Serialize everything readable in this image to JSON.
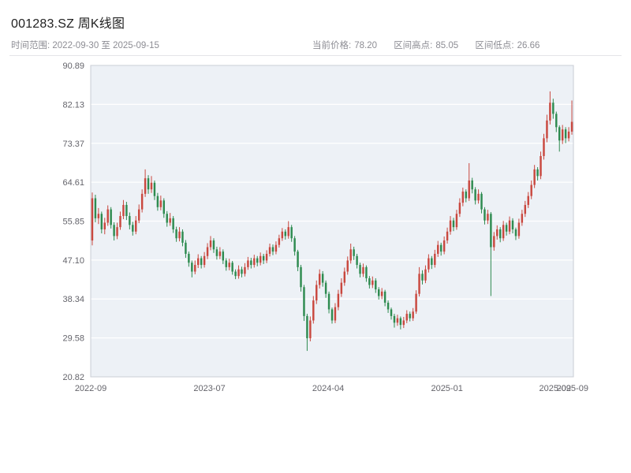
{
  "header": {
    "title": "001283.SZ 周K线图",
    "time_range": "时间范围: 2022-09-30 至 2025-09-15",
    "stats": [
      {
        "label": "当前价格:",
        "value": "78.20"
      },
      {
        "label": "区间高点:",
        "value": "85.05"
      },
      {
        "label": "区间低点:",
        "value": "26.66"
      }
    ]
  },
  "chart_data": {
    "type": "candlestick",
    "title": "001283.SZ 周K线图",
    "symbol": "001283.SZ",
    "period": "weekly",
    "start_date": "2022-09-30",
    "end_date": "2025-09-15",
    "current_price": 78.2,
    "range_high": 85.05,
    "range_low": 26.66,
    "ylim": [
      20.82,
      90.89
    ],
    "y_ticks": [
      "90.89",
      "82.13",
      "73.37",
      "64.61",
      "55.85",
      "47.10",
      "38.34",
      "29.58",
      "20.82"
    ],
    "x_ticks": [
      {
        "label": "2022-09",
        "pos": 0.0
      },
      {
        "label": "2023-07",
        "pos": 0.246
      },
      {
        "label": "2024-04",
        "pos": 0.492
      },
      {
        "label": "2025-01",
        "pos": 0.738
      },
      {
        "label": "2025-09",
        "pos": 0.962
      },
      {
        "label": "2025-09",
        "pos": 0.998
      }
    ],
    "grid": true,
    "legend": "none",
    "up_color": "#c9483f",
    "down_color": "#2e8b50",
    "plot_bg": "#edf1f6",
    "border_color": "#c8ccd4",
    "candles": [
      [
        51.5,
        62.3,
        50.4,
        61.0
      ],
      [
        61.0,
        61.8,
        55.6,
        56.5
      ],
      [
        56.5,
        58.8,
        55.2,
        57.5
      ],
      [
        57.5,
        58.0,
        53.1,
        54.0
      ],
      [
        54.0,
        56.6,
        52.9,
        55.5
      ],
      [
        55.5,
        59.4,
        54.8,
        58.5
      ],
      [
        58.5,
        59.0,
        54.2,
        55.0
      ],
      [
        55.0,
        55.6,
        51.5,
        52.5
      ],
      [
        52.5,
        55.5,
        51.8,
        54.5
      ],
      [
        54.5,
        58.0,
        53.9,
        57.0
      ],
      [
        57.0,
        60.6,
        56.3,
        59.5
      ],
      [
        59.5,
        60.2,
        56.1,
        57.0
      ],
      [
        57.0,
        57.8,
        54.0,
        55.0
      ],
      [
        55.0,
        55.7,
        52.6,
        53.5
      ],
      [
        53.5,
        57.0,
        52.9,
        56.0
      ],
      [
        56.0,
        59.6,
        55.4,
        58.5
      ],
      [
        58.5,
        63.0,
        57.8,
        62.0
      ],
      [
        62.0,
        67.5,
        61.3,
        65.5
      ],
      [
        65.5,
        66.2,
        62.0,
        63.0
      ],
      [
        63.0,
        66.0,
        62.2,
        64.5
      ],
      [
        64.5,
        65.0,
        60.6,
        61.5
      ],
      [
        61.5,
        62.2,
        58.2,
        59.0
      ],
      [
        59.0,
        61.6,
        58.3,
        60.5
      ],
      [
        60.5,
        61.0,
        56.6,
        57.5
      ],
      [
        57.5,
        58.1,
        54.6,
        55.5
      ],
      [
        55.5,
        57.7,
        54.8,
        56.5
      ],
      [
        56.5,
        57.0,
        53.2,
        54.0
      ],
      [
        54.0,
        54.6,
        51.2,
        52.0
      ],
      [
        52.0,
        54.5,
        51.3,
        53.5
      ],
      [
        53.5,
        54.0,
        50.2,
        51.0
      ],
      [
        51.0,
        51.6,
        47.6,
        48.5
      ],
      [
        48.5,
        49.0,
        45.6,
        46.5
      ],
      [
        46.5,
        47.0,
        43.2,
        44.5
      ],
      [
        44.5,
        47.0,
        43.9,
        46.0
      ],
      [
        46.0,
        48.4,
        45.3,
        47.5
      ],
      [
        47.5,
        48.0,
        45.2,
        46.0
      ],
      [
        46.0,
        48.9,
        45.4,
        48.0
      ],
      [
        48.0,
        50.9,
        47.3,
        50.0
      ],
      [
        50.0,
        52.5,
        49.3,
        51.5
      ],
      [
        51.5,
        52.0,
        48.7,
        49.5
      ],
      [
        49.5,
        50.1,
        47.2,
        48.0
      ],
      [
        48.0,
        50.0,
        47.3,
        49.0
      ],
      [
        49.0,
        49.5,
        46.2,
        47.0
      ],
      [
        47.0,
        47.5,
        44.7,
        45.5
      ],
      [
        45.5,
        47.4,
        44.8,
        46.5
      ],
      [
        46.5,
        46.9,
        43.8,
        44.5
      ],
      [
        44.5,
        45.0,
        42.8,
        43.5
      ],
      [
        43.5,
        45.9,
        42.9,
        45.0
      ],
      [
        45.0,
        45.6,
        43.2,
        44.0
      ],
      [
        44.0,
        46.4,
        43.4,
        45.5
      ],
      [
        45.5,
        47.8,
        44.9,
        47.0
      ],
      [
        47.0,
        47.6,
        45.2,
        46.0
      ],
      [
        46.0,
        48.3,
        45.4,
        47.5
      ],
      [
        47.5,
        48.0,
        45.7,
        46.5
      ],
      [
        46.5,
        48.8,
        45.9,
        48.0
      ],
      [
        48.0,
        48.5,
        46.2,
        47.0
      ],
      [
        47.0,
        49.3,
        46.4,
        48.5
      ],
      [
        48.5,
        50.8,
        47.9,
        50.0
      ],
      [
        50.0,
        50.6,
        48.2,
        49.0
      ],
      [
        49.0,
        51.3,
        48.4,
        50.5
      ],
      [
        50.5,
        52.8,
        49.9,
        52.0
      ],
      [
        52.0,
        54.3,
        51.4,
        53.5
      ],
      [
        53.5,
        54.0,
        51.7,
        52.5
      ],
      [
        52.5,
        55.85,
        51.9,
        54.5
      ],
      [
        54.5,
        55.0,
        51.2,
        52.0
      ],
      [
        52.0,
        52.5,
        48.1,
        49.0
      ],
      [
        49.0,
        49.4,
        44.6,
        45.5
      ],
      [
        45.5,
        46.0,
        40.0,
        41.0
      ],
      [
        41.0,
        41.5,
        33.4,
        34.5
      ],
      [
        34.5,
        35.0,
        26.66,
        29.5
      ],
      [
        29.5,
        34.4,
        28.8,
        33.5
      ],
      [
        33.5,
        39.0,
        32.8,
        38.0
      ],
      [
        38.0,
        42.5,
        37.2,
        41.5
      ],
      [
        41.5,
        45.0,
        40.7,
        44.0
      ],
      [
        44.0,
        44.6,
        41.1,
        42.0
      ],
      [
        42.0,
        42.5,
        38.6,
        39.5
      ],
      [
        39.5,
        40.0,
        35.1,
        36.0
      ],
      [
        36.0,
        36.4,
        32.8,
        33.5
      ],
      [
        33.5,
        37.4,
        32.9,
        36.5
      ],
      [
        36.5,
        40.4,
        35.8,
        39.5
      ],
      [
        39.5,
        43.0,
        38.8,
        42.0
      ],
      [
        42.0,
        45.4,
        41.3,
        44.5
      ],
      [
        44.5,
        47.9,
        43.8,
        47.0
      ],
      [
        47.0,
        50.8,
        46.3,
        49.5
      ],
      [
        49.5,
        50.1,
        47.1,
        48.0
      ],
      [
        48.0,
        48.5,
        45.2,
        46.0
      ],
      [
        46.0,
        46.5,
        43.2,
        44.0
      ],
      [
        44.0,
        46.3,
        43.3,
        45.5
      ],
      [
        45.5,
        45.9,
        42.2,
        43.0
      ],
      [
        43.0,
        43.5,
        40.7,
        41.5
      ],
      [
        41.5,
        43.4,
        40.8,
        42.5
      ],
      [
        42.5,
        43.0,
        39.7,
        40.5
      ],
      [
        40.5,
        41.0,
        38.2,
        39.0
      ],
      [
        39.0,
        40.8,
        38.3,
        40.0
      ],
      [
        40.0,
        40.4,
        36.7,
        37.5
      ],
      [
        37.5,
        38.0,
        35.2,
        36.0
      ],
      [
        36.0,
        36.4,
        33.7,
        34.5
      ],
      [
        34.5,
        35.0,
        31.9,
        33.0
      ],
      [
        33.0,
        34.8,
        32.3,
        34.0
      ],
      [
        34.0,
        34.4,
        31.5,
        32.5
      ],
      [
        32.5,
        34.3,
        31.8,
        33.5
      ],
      [
        33.5,
        35.8,
        32.9,
        35.0
      ],
      [
        35.0,
        35.5,
        33.3,
        34.0
      ],
      [
        34.0,
        36.3,
        33.4,
        35.5
      ],
      [
        35.5,
        40.3,
        35.0,
        39.5
      ],
      [
        39.5,
        45.5,
        38.9,
        44.0
      ],
      [
        44.0,
        44.8,
        41.6,
        42.5
      ],
      [
        42.5,
        45.9,
        41.9,
        45.0
      ],
      [
        45.0,
        48.4,
        44.3,
        47.5
      ],
      [
        47.5,
        48.0,
        45.1,
        46.0
      ],
      [
        46.0,
        49.4,
        45.4,
        48.5
      ],
      [
        48.5,
        51.4,
        47.8,
        50.5
      ],
      [
        50.5,
        51.0,
        48.1,
        49.0
      ],
      [
        49.0,
        52.4,
        48.4,
        51.5
      ],
      [
        51.5,
        54.4,
        50.8,
        53.5
      ],
      [
        53.5,
        57.0,
        52.8,
        56.0
      ],
      [
        56.0,
        56.6,
        53.6,
        54.5
      ],
      [
        54.5,
        58.4,
        53.9,
        57.5
      ],
      [
        57.5,
        61.0,
        56.8,
        60.0
      ],
      [
        60.0,
        63.4,
        59.2,
        62.5
      ],
      [
        62.5,
        63.0,
        60.1,
        61.0
      ],
      [
        61.0,
        68.9,
        60.4,
        65.0
      ],
      [
        65.0,
        65.6,
        62.1,
        63.0
      ],
      [
        63.0,
        63.5,
        59.6,
        60.5
      ],
      [
        60.5,
        63.0,
        59.8,
        62.0
      ],
      [
        62.0,
        62.4,
        57.6,
        58.5
      ],
      [
        58.5,
        59.0,
        55.1,
        56.0
      ],
      [
        56.0,
        58.4,
        55.2,
        57.5
      ],
      [
        57.5,
        57.9,
        39.0,
        50.0
      ],
      [
        50.0,
        53.4,
        49.2,
        52.5
      ],
      [
        52.5,
        54.9,
        51.7,
        54.0
      ],
      [
        54.0,
        54.5,
        51.1,
        52.0
      ],
      [
        52.0,
        55.9,
        51.4,
        55.0
      ],
      [
        55.0,
        55.5,
        52.6,
        53.5
      ],
      [
        53.5,
        56.9,
        52.9,
        56.0
      ],
      [
        56.0,
        56.5,
        53.1,
        54.0
      ],
      [
        54.0,
        54.4,
        51.6,
        52.5
      ],
      [
        52.5,
        56.4,
        51.9,
        55.5
      ],
      [
        55.5,
        58.4,
        54.8,
        57.5
      ],
      [
        57.5,
        60.4,
        56.8,
        59.5
      ],
      [
        59.5,
        62.4,
        58.8,
        61.5
      ],
      [
        61.5,
        65.0,
        60.8,
        64.0
      ],
      [
        64.0,
        68.5,
        63.3,
        67.5
      ],
      [
        67.5,
        68.0,
        65.0,
        66.0
      ],
      [
        66.0,
        71.5,
        65.3,
        70.5
      ],
      [
        70.5,
        75.5,
        69.7,
        74.5
      ],
      [
        74.5,
        79.8,
        73.6,
        78.5
      ],
      [
        78.5,
        85.05,
        77.6,
        82.5
      ],
      [
        82.5,
        83.4,
        78.9,
        80.0
      ],
      [
        80.0,
        80.5,
        75.9,
        77.0
      ],
      [
        77.0,
        77.4,
        71.5,
        74.0
      ],
      [
        74.0,
        77.5,
        73.2,
        76.5
      ],
      [
        76.5,
        77.0,
        73.4,
        74.5
      ],
      [
        74.5,
        77.0,
        73.8,
        76.0
      ],
      [
        76.0,
        83.0,
        75.3,
        78.2
      ]
    ]
  }
}
